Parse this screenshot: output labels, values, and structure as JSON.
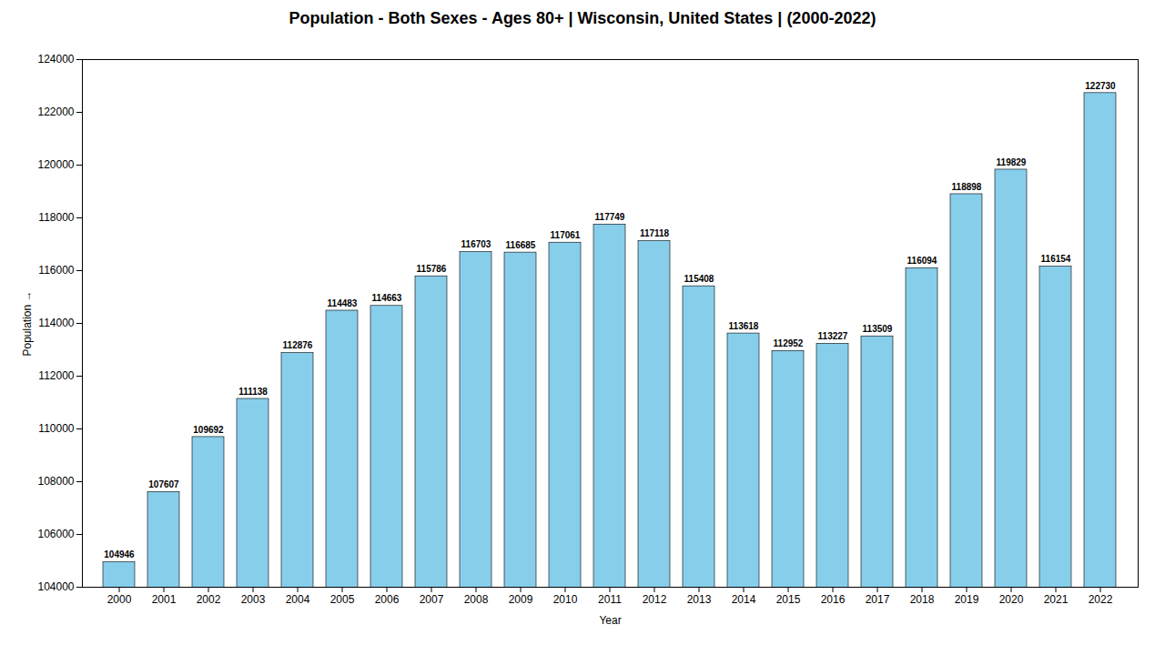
{
  "chart_data": {
    "type": "bar",
    "title": "Population - Both Sexes - Ages 80+ | Wisconsin, United States |  (2000-2022)",
    "x_label": "Year",
    "y_label": "Population",
    "categories": [
      "2000",
      "2001",
      "2002",
      "2003",
      "2004",
      "2005",
      "2006",
      "2007",
      "2008",
      "2009",
      "2010",
      "2011",
      "2012",
      "2013",
      "2014",
      "2015",
      "2016",
      "2017",
      "2018",
      "2019",
      "2020",
      "2021",
      "2022"
    ],
    "values": [
      104946,
      107607,
      109692,
      111138,
      112876,
      114483,
      114663,
      115786,
      116703,
      116685,
      117061,
      117749,
      117118,
      115408,
      113618,
      112952,
      113227,
      113509,
      116094,
      118898,
      119829,
      116154,
      122730
    ],
    "color": "#87CEEB",
    "ylim": [
      104000,
      124000
    ],
    "yticks": [
      104000,
      106000,
      108000,
      110000,
      112000,
      114000,
      116000,
      118000,
      120000,
      122000,
      124000
    ],
    "grid": false,
    "data_labels": true
  }
}
